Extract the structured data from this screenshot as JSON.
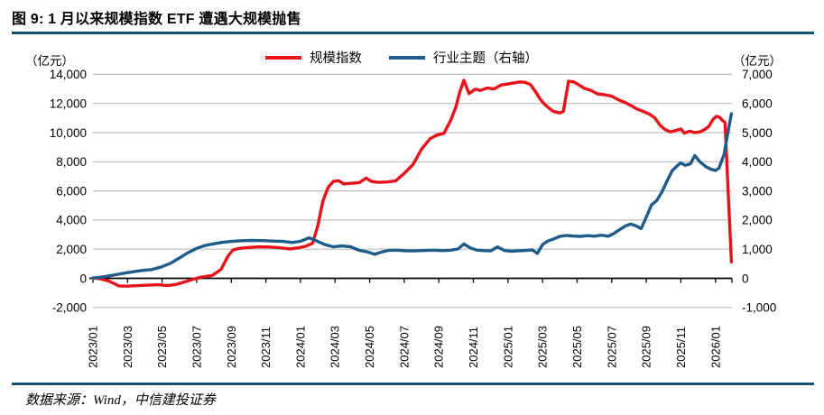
{
  "figure": {
    "title": "图 9: 1 月以来规模指数 ETF 遭遇大规模抛售",
    "left_unit": "（亿元）",
    "right_unit": "（亿元）",
    "source": "数据来源：Wind，中信建投证券"
  },
  "colors": {
    "accent_rule": "#14536e",
    "red_series": "#e8121a",
    "blue_series": "#1f5c8a",
    "gridline": "#bdbdbd",
    "axis": "#000000"
  },
  "chart_data": {
    "type": "line",
    "title": "图 9: 1 月以来规模指数 ETF 遭遇大规模抛售",
    "grid": true,
    "legend_position": "top",
    "x_unit": "months since 2023/01",
    "x_tick_months": [
      0,
      2,
      4,
      6,
      8,
      10,
      12,
      14,
      16,
      18,
      20,
      22,
      24,
      26,
      28,
      30,
      32,
      34,
      36
    ],
    "x_tick_labels": [
      "2023/01",
      "2023/03",
      "2023/05",
      "2023/07",
      "2023/09",
      "2023/11",
      "2024/01",
      "2024/03",
      "2024/05",
      "2024/07",
      "2024/09",
      "2024/11",
      "2025/01",
      "2025/03",
      "2025/05",
      "2025/07",
      "2025/09",
      "2025/11",
      "2026/01"
    ],
    "left_axis": {
      "label": "（亿元）",
      "min": -2000,
      "max": 14000,
      "step": 2000,
      "tick_values": [
        14000,
        12000,
        10000,
        8000,
        6000,
        4000,
        2000,
        0,
        -2000
      ],
      "tick_labels": [
        "14,000",
        "12,000",
        "10,000",
        "8,000",
        "6,000",
        "4,000",
        "2,000",
        "0",
        "-2,000"
      ]
    },
    "right_axis": {
      "label": "（亿元）",
      "min": -1000,
      "max": 7000,
      "step": 1000,
      "tick_values": [
        7000,
        6000,
        5000,
        4000,
        3000,
        2000,
        1000,
        0,
        -1000
      ],
      "tick_labels": [
        "7,000",
        "6,000",
        "5,000",
        "4,000",
        "3,000",
        "2,000",
        "1,000",
        "0",
        "-1,000"
      ]
    },
    "series": [
      {
        "name": "规模指数",
        "axis": "left",
        "color": "#e8121a",
        "points": [
          [
            0,
            30
          ],
          [
            0.4,
            -30
          ],
          [
            0.9,
            -180
          ],
          [
            1.5,
            -520
          ],
          [
            2,
            -540
          ],
          [
            2.6,
            -500
          ],
          [
            3.2,
            -470
          ],
          [
            3.8,
            -440
          ],
          [
            4.3,
            -500
          ],
          [
            4.8,
            -420
          ],
          [
            5.3,
            -250
          ],
          [
            5.8,
            -60
          ],
          [
            6.3,
            90
          ],
          [
            6.9,
            200
          ],
          [
            7.4,
            600
          ],
          [
            7.8,
            1500
          ],
          [
            8.1,
            1950
          ],
          [
            8.5,
            2060
          ],
          [
            9,
            2120
          ],
          [
            9.6,
            2160
          ],
          [
            10.2,
            2150
          ],
          [
            10.8,
            2100
          ],
          [
            11.4,
            2020
          ],
          [
            11.9,
            2100
          ],
          [
            12.3,
            2200
          ],
          [
            12.7,
            2400
          ],
          [
            13,
            3600
          ],
          [
            13.3,
            5300
          ],
          [
            13.6,
            6250
          ],
          [
            13.9,
            6650
          ],
          [
            14.2,
            6700
          ],
          [
            14.5,
            6480
          ],
          [
            14.9,
            6520
          ],
          [
            15.4,
            6570
          ],
          [
            15.8,
            6880
          ],
          [
            16.1,
            6650
          ],
          [
            16.5,
            6590
          ],
          [
            17,
            6610
          ],
          [
            17.5,
            6680
          ],
          [
            18,
            7200
          ],
          [
            18.5,
            7800
          ],
          [
            19,
            8850
          ],
          [
            19.5,
            9590
          ],
          [
            19.9,
            9830
          ],
          [
            20.3,
            9950
          ],
          [
            20.7,
            10880
          ],
          [
            21,
            11800
          ],
          [
            21.2,
            12740
          ],
          [
            21.45,
            13590
          ],
          [
            21.75,
            12680
          ],
          [
            22.1,
            12980
          ],
          [
            22.4,
            12900
          ],
          [
            22.8,
            13060
          ],
          [
            23.2,
            13000
          ],
          [
            23.6,
            13270
          ],
          [
            24,
            13340
          ],
          [
            24.4,
            13420
          ],
          [
            24.7,
            13480
          ],
          [
            25,
            13450
          ],
          [
            25.3,
            13300
          ],
          [
            25.6,
            12800
          ],
          [
            25.9,
            12240
          ],
          [
            26.2,
            11850
          ],
          [
            26.6,
            11470
          ],
          [
            27,
            11350
          ],
          [
            27.2,
            11450
          ],
          [
            27.5,
            13530
          ],
          [
            27.8,
            13480
          ],
          [
            28,
            13350
          ],
          [
            28.4,
            13050
          ],
          [
            28.8,
            12900
          ],
          [
            29.2,
            12650
          ],
          [
            29.6,
            12600
          ],
          [
            30,
            12500
          ],
          [
            30.4,
            12250
          ],
          [
            30.8,
            12050
          ],
          [
            31.2,
            11800
          ],
          [
            31.5,
            11600
          ],
          [
            31.8,
            11470
          ],
          [
            32.2,
            11250
          ],
          [
            32.5,
            11000
          ],
          [
            32.8,
            10500
          ],
          [
            33.1,
            10200
          ],
          [
            33.4,
            10050
          ],
          [
            33.7,
            10150
          ],
          [
            34,
            10250
          ],
          [
            34.2,
            9960
          ],
          [
            34.5,
            10100
          ],
          [
            34.8,
            10000
          ],
          [
            35.1,
            10050
          ],
          [
            35.35,
            10200
          ],
          [
            35.6,
            10400
          ],
          [
            35.85,
            10900
          ],
          [
            36.05,
            11120
          ],
          [
            36.25,
            11050
          ],
          [
            36.4,
            10840
          ],
          [
            36.55,
            10700
          ],
          [
            36.92,
            1130
          ]
        ]
      },
      {
        "name": "行业主题（右轴）",
        "axis": "right",
        "color": "#1f5c8a",
        "points": [
          [
            0,
            10
          ],
          [
            0.5,
            40
          ],
          [
            1,
            90
          ],
          [
            1.6,
            155
          ],
          [
            2.2,
            215
          ],
          [
            2.8,
            265
          ],
          [
            3.4,
            300
          ],
          [
            4,
            400
          ],
          [
            4.5,
            520
          ],
          [
            5,
            700
          ],
          [
            5.5,
            880
          ],
          [
            6,
            1030
          ],
          [
            6.5,
            1130
          ],
          [
            7,
            1185
          ],
          [
            7.5,
            1235
          ],
          [
            8,
            1265
          ],
          [
            8.6,
            1290
          ],
          [
            9.2,
            1300
          ],
          [
            9.8,
            1295
          ],
          [
            10.4,
            1280
          ],
          [
            11,
            1265
          ],
          [
            11.5,
            1230
          ],
          [
            12,
            1270
          ],
          [
            12.5,
            1390
          ],
          [
            12.9,
            1290
          ],
          [
            13.4,
            1160
          ],
          [
            13.9,
            1080
          ],
          [
            14.4,
            1110
          ],
          [
            14.9,
            1085
          ],
          [
            15.4,
            960
          ],
          [
            15.9,
            905
          ],
          [
            16.3,
            825
          ],
          [
            16.7,
            905
          ],
          [
            17.1,
            960
          ],
          [
            17.6,
            965
          ],
          [
            18.1,
            945
          ],
          [
            18.6,
            940
          ],
          [
            19.1,
            955
          ],
          [
            19.7,
            965
          ],
          [
            20.2,
            950
          ],
          [
            20.7,
            965
          ],
          [
            21.1,
            1005
          ],
          [
            21.45,
            1180
          ],
          [
            21.8,
            1050
          ],
          [
            22.2,
            965
          ],
          [
            22.6,
            950
          ],
          [
            23,
            940
          ],
          [
            23.4,
            1080
          ],
          [
            23.8,
            955
          ],
          [
            24.2,
            930
          ],
          [
            24.6,
            945
          ],
          [
            25,
            955
          ],
          [
            25.4,
            975
          ],
          [
            25.7,
            855
          ],
          [
            26,
            1160
          ],
          [
            26.3,
            1280
          ],
          [
            26.6,
            1340
          ],
          [
            27,
            1440
          ],
          [
            27.4,
            1470
          ],
          [
            27.8,
            1450
          ],
          [
            28.2,
            1440
          ],
          [
            28.6,
            1465
          ],
          [
            29,
            1445
          ],
          [
            29.4,
            1480
          ],
          [
            29.8,
            1445
          ],
          [
            30.1,
            1530
          ],
          [
            30.4,
            1650
          ],
          [
            30.8,
            1800
          ],
          [
            31.1,
            1860
          ],
          [
            31.4,
            1805
          ],
          [
            31.7,
            1705
          ],
          [
            32,
            2100
          ],
          [
            32.3,
            2520
          ],
          [
            32.6,
            2665
          ],
          [
            32.9,
            2960
          ],
          [
            33.2,
            3340
          ],
          [
            33.5,
            3700
          ],
          [
            33.8,
            3870
          ],
          [
            34,
            3960
          ],
          [
            34.25,
            3880
          ],
          [
            34.55,
            3930
          ],
          [
            34.8,
            4215
          ],
          [
            35.1,
            4000
          ],
          [
            35.45,
            3830
          ],
          [
            35.75,
            3740
          ],
          [
            36,
            3700
          ],
          [
            36.2,
            3780
          ],
          [
            36.5,
            4250
          ],
          [
            36.7,
            4950
          ],
          [
            36.92,
            5650
          ]
        ]
      }
    ]
  }
}
